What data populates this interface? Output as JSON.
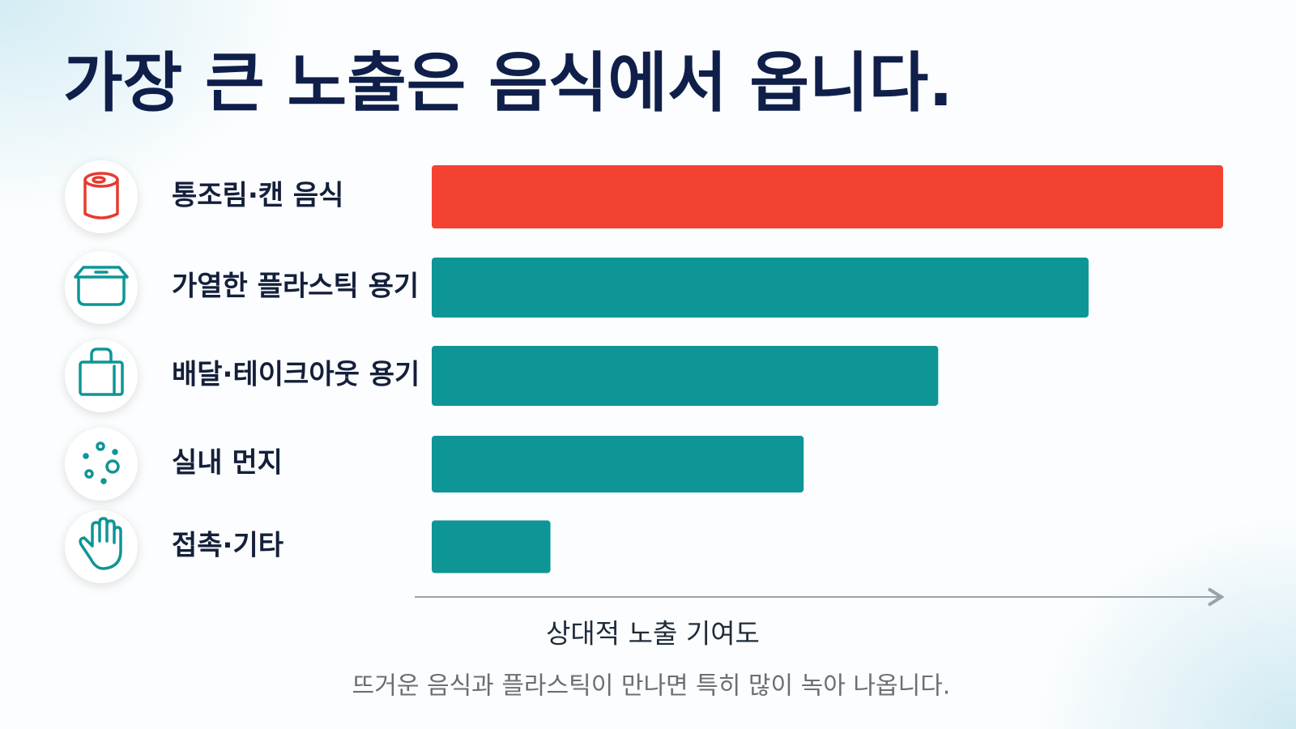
{
  "chart_data": {
    "type": "barh",
    "title": "가장 큰 노출은 음식에서 옵니다.",
    "categories": [
      "통조림·캔 음식",
      "가열한 플라스틱 용기",
      "배달·테이크아웃 용기",
      "실내 먼지",
      "접촉·기타"
    ],
    "values": [
      100,
      83,
      64,
      47,
      15
    ],
    "colors": [
      "#f44232",
      "#0e9595",
      "#0e9595",
      "#0e9595",
      "#0e9595"
    ],
    "xlim": [
      0,
      100
    ],
    "xlabel": "상대적 노출 기여도",
    "footnote": "뜨거운 음식과 플라스틱이 만나면 특히 많이 녹아 나옵니다."
  }
}
